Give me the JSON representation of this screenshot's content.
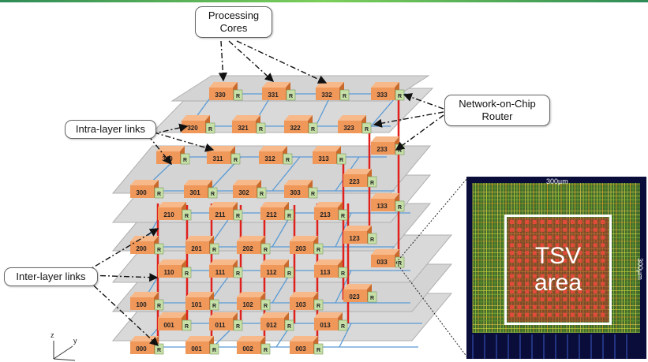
{
  "callouts": {
    "cores": "Processing Cores",
    "intra": "Intra-layer links",
    "inter": "Inter-layer links",
    "router": "Network-on-Chip Router"
  },
  "router_label": "R",
  "layers": [
    {
      "rows": [
        [
          "000",
          "001",
          "002",
          "003"
        ],
        [
          "001",
          "011",
          "012",
          "013"
        ],
        [
          "100",
          "101",
          "102",
          "103"
        ],
        [
          "110",
          "111",
          "112",
          "113"
        ]
      ]
    },
    {
      "rows": [
        [
          "200",
          "201",
          "202",
          "203"
        ],
        [
          "210",
          "211",
          "212",
          "213"
        ],
        [
          "300",
          "301",
          "302",
          "303"
        ],
        [
          "340",
          "311",
          "312",
          "313"
        ]
      ]
    },
    {
      "rows": [
        [
          "320",
          "321",
          "322",
          "323"
        ],
        [
          "330",
          "331",
          "332",
          "333"
        ]
      ]
    }
  ],
  "side_nodes": [
    "023",
    "033",
    "123",
    "133",
    "223",
    "233"
  ],
  "chip": {
    "tsv_line1": "TSV",
    "tsv_line2": "area",
    "width_label": "300µm",
    "height_label": "300µm"
  },
  "axes": {
    "z": "z",
    "y": "y"
  },
  "colors": {
    "core": "#f0975a",
    "router": "#c6e0a8",
    "plane": "#d9d9d9",
    "intra_link": "#5b9bd5",
    "inter_link": "#e0201b"
  }
}
